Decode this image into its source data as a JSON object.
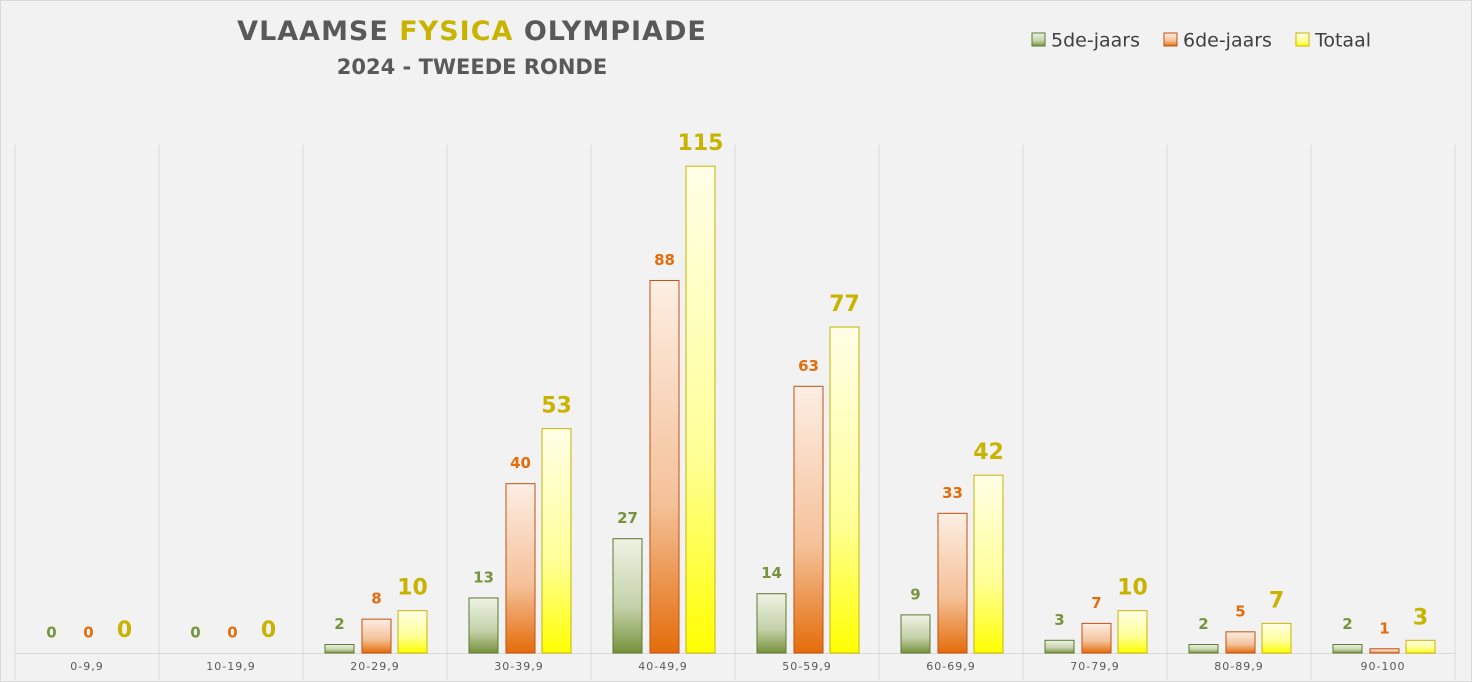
{
  "chart_data": {
    "type": "bar",
    "title": [
      "VLAAMSE",
      "FYSICA",
      "OLYMPIADE"
    ],
    "title_colors": [
      "#595959",
      "#c8b400",
      "#595959"
    ],
    "subtitle": "2024 - TWEEDE RONDE",
    "categories": [
      "0-9,9",
      "10-19,9",
      "20-29,9",
      "30-39,9",
      "40-49,9",
      "50-59,9",
      "60-69,9",
      "70-79,9",
      "80-89,9",
      "90-100"
    ],
    "series": [
      {
        "name": "5de-jaars",
        "color": "#76923c",
        "light": "#eef3e4",
        "border": "#5a7a30",
        "label_color": "#77933c",
        "values": [
          0,
          0,
          2,
          13,
          27,
          14,
          9,
          3,
          2,
          2
        ]
      },
      {
        "name": "6de-jaars",
        "color": "#e46c0a",
        "light": "#fdeee4",
        "border": "#c05010",
        "label_color": "#e46c0a",
        "values": [
          0,
          0,
          8,
          40,
          88,
          63,
          33,
          7,
          5,
          1
        ]
      },
      {
        "name": "Totaal",
        "color": "#ffff00",
        "light": "#ffffe8",
        "border": "#c8b400",
        "label_color": "#c8b400",
        "values": [
          0,
          0,
          10,
          53,
          115,
          77,
          42,
          10,
          7,
          3
        ]
      }
    ],
    "ylim": [
      0,
      120
    ],
    "legend": "top-right"
  }
}
